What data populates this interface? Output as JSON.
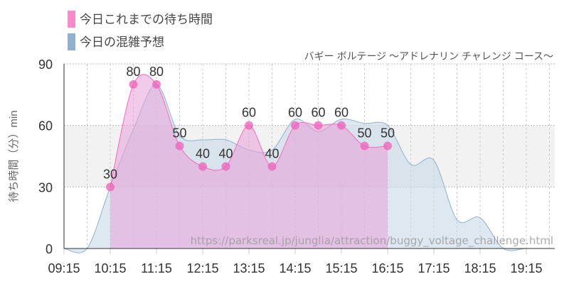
{
  "chart_data": {
    "type": "area",
    "title": "バギー ボルテージ 〜アドレナリン チャレンジ コース〜",
    "ylabel": "待ち時間（分）min",
    "xlabel": "",
    "ylim": [
      0,
      90
    ],
    "yticks": [
      0,
      30,
      60,
      90
    ],
    "xticks": [
      "09:15",
      "10:15",
      "11:15",
      "12:15",
      "13:15",
      "14:15",
      "15:15",
      "16:15",
      "17:15",
      "18:15",
      "19:15"
    ],
    "highlight_band": [
      30,
      60
    ],
    "grid": true,
    "legend_placement": "top-left",
    "watermark": "https://parksreal.jp/junglia/attraction/buggy_voltage_challenge.html",
    "series": [
      {
        "name": "今日これまでの待ち時間",
        "color": "#ff88cc",
        "x": [
          "10:15",
          "10:45",
          "11:15",
          "11:45",
          "12:15",
          "12:45",
          "13:15",
          "13:45",
          "14:15",
          "14:45",
          "15:15",
          "15:45",
          "16:15"
        ],
        "values": [
          30,
          80,
          80,
          50,
          40,
          40,
          60,
          40,
          60,
          60,
          60,
          50,
          50
        ]
      },
      {
        "name": "今日の混雑予想",
        "color": "#8fb0d0",
        "x": [
          "09:15",
          "09:45",
          "10:15",
          "10:45",
          "11:15",
          "11:45",
          "12:15",
          "12:45",
          "13:15",
          "13:45",
          "14:15",
          "14:45",
          "15:15",
          "15:45",
          "16:15",
          "16:45",
          "17:15",
          "17:45",
          "18:15",
          "18:45",
          "19:15",
          "19:45"
        ],
        "values": [
          0,
          0,
          30,
          58,
          80,
          55,
          53,
          53,
          48,
          48,
          63,
          57,
          63,
          61,
          60,
          41,
          43,
          14,
          15,
          0,
          0,
          0
        ]
      }
    ]
  }
}
